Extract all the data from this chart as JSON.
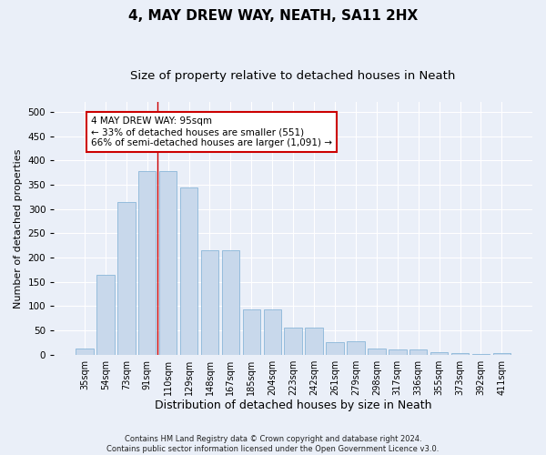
{
  "title": "4, MAY DREW WAY, NEATH, SA11 2HX",
  "subtitle": "Size of property relative to detached houses in Neath",
  "xlabel": "Distribution of detached houses by size in Neath",
  "ylabel": "Number of detached properties",
  "categories": [
    "35sqm",
    "54sqm",
    "73sqm",
    "91sqm",
    "110sqm",
    "129sqm",
    "148sqm",
    "167sqm",
    "185sqm",
    "204sqm",
    "223sqm",
    "242sqm",
    "261sqm",
    "279sqm",
    "298sqm",
    "317sqm",
    "336sqm",
    "355sqm",
    "373sqm",
    "392sqm",
    "411sqm"
  ],
  "values": [
    12,
    165,
    315,
    378,
    378,
    345,
    215,
    215,
    93,
    93,
    55,
    55,
    25,
    28,
    12,
    10,
    10,
    6,
    4,
    2,
    4
  ],
  "bar_color": "#c8d8eb",
  "bar_edge_color": "#7aadd4",
  "bar_width": 0.85,
  "vline_x_idx": 3,
  "vline_color": "#cc0000",
  "annotation_line1": "4 MAY DREW WAY: 95sqm",
  "annotation_line2": "← 33% of detached houses are smaller (551)",
  "annotation_line3": "66% of semi-detached houses are larger (1,091) →",
  "box_color": "#cc0000",
  "bg_color": "#eaeff8",
  "fig_bg_color": "#eaeff8",
  "grid_color": "#ffffff",
  "ylim": [
    0,
    520
  ],
  "yticks": [
    0,
    50,
    100,
    150,
    200,
    250,
    300,
    350,
    400,
    450,
    500
  ],
  "footer": "Contains HM Land Registry data © Crown copyright and database right 2024.\nContains public sector information licensed under the Open Government Licence v3.0.",
  "title_fontsize": 11,
  "subtitle_fontsize": 9.5,
  "xlabel_fontsize": 9,
  "ylabel_fontsize": 8,
  "tick_fontsize": 7,
  "footer_fontsize": 6,
  "annotation_fontsize": 7.5
}
